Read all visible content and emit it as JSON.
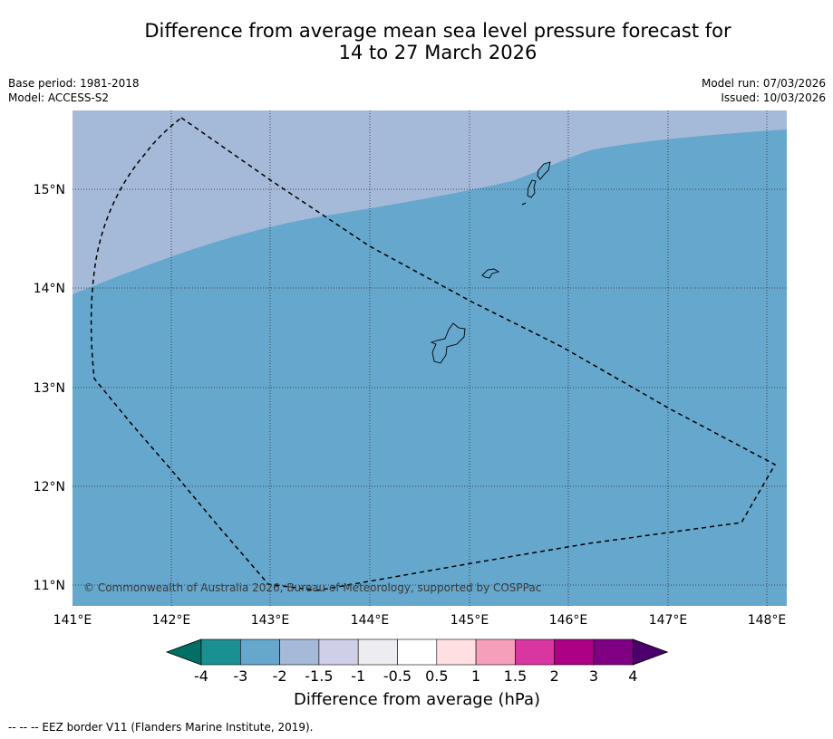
{
  "title_line1": "Difference from average mean sea level pressure forecast for",
  "title_line2": "14 to 27 March 2026",
  "meta_left": {
    "base_period": "Base period: 1981-2018",
    "model": "Model: ACCESS-S2"
  },
  "meta_right": {
    "model_run": "Model run: 07/03/2026",
    "issued": "Issued: 10/03/2026"
  },
  "map": {
    "lon_labels": [
      "141°E",
      "142°E",
      "143°E",
      "144°E",
      "145°E",
      "146°E",
      "147°E",
      "148°E"
    ],
    "lat_labels": [
      "15°N",
      "14°N",
      "13°N",
      "12°N",
      "11°N"
    ],
    "copyright": "© Commonwealth of Australia 2026, Bureau of Meteorology, supported by COSPPac",
    "colors": {
      "band_minus2_to_minus1_5": "#a5b9d9",
      "band_minus3_to_minus2": "#66a7cd"
    }
  },
  "colorbar": {
    "label": "Difference from average (hPa)",
    "ticks": [
      "-4",
      "-3",
      "-2",
      "-1.5",
      "-1",
      "-0.5",
      "0.5",
      "1",
      "1.5",
      "2",
      "3",
      "4"
    ],
    "colors": [
      "#1a9093",
      "#66a7cd",
      "#a5b9d9",
      "#cfcfea",
      "#ededf1",
      "#ffffff",
      "#ffdfe1",
      "#f59fbb",
      "#d936a1",
      "#ad0086",
      "#7f0083"
    ],
    "under_color": "#006f66",
    "over_color": "#4c006b"
  },
  "footnote": "--  --  -- EEZ border V11 (Flanders Marine Institute, 2019)."
}
